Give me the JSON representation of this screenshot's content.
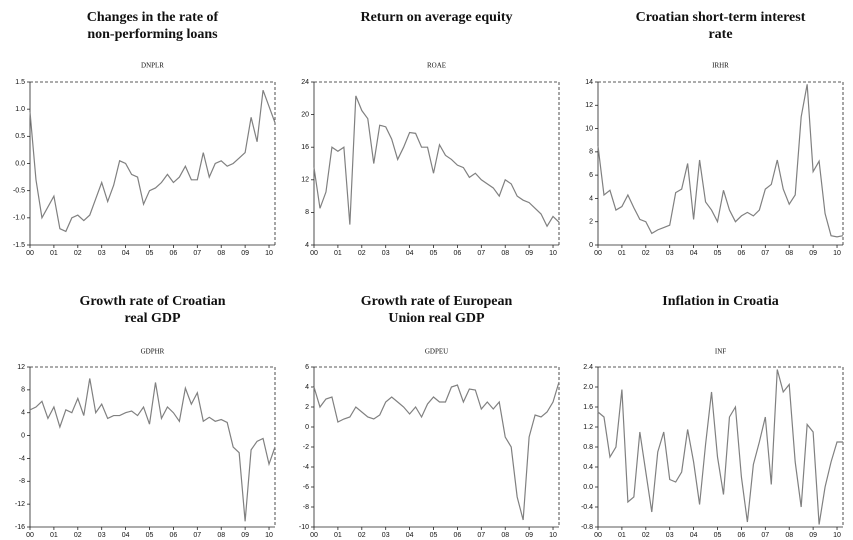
{
  "chart_data": [
    {
      "type": "line",
      "title": [
        "Changes in the rate of",
        "non-performing loans"
      ],
      "subtitle": "DNPLR",
      "color": "#808080",
      "categories": [
        "00",
        null,
        null,
        null,
        "01",
        null,
        null,
        null,
        "02",
        null,
        null,
        null,
        "03",
        null,
        null,
        null,
        "04",
        null,
        null,
        null,
        "05",
        null,
        null,
        null,
        "06",
        null,
        null,
        null,
        "07",
        null,
        null,
        null,
        "08",
        null,
        null,
        null,
        "09",
        null,
        null,
        null,
        "10",
        null
      ],
      "values": [
        0.95,
        -0.3,
        -1.0,
        -0.8,
        -0.6,
        -1.2,
        -1.25,
        -1.0,
        -0.95,
        -1.05,
        -0.95,
        -0.65,
        -0.35,
        -0.7,
        -0.4,
        0.05,
        0.0,
        -0.2,
        -0.25,
        -0.75,
        -0.5,
        -0.45,
        -0.35,
        -0.2,
        -0.35,
        -0.25,
        -0.05,
        -0.3,
        -0.3,
        0.2,
        -0.25,
        0.0,
        0.05,
        -0.05,
        0.0,
        0.1,
        0.2,
        0.85,
        0.4,
        1.35,
        1.05,
        0.75
      ],
      "ylim": [
        -1.5,
        1.5
      ],
      "yticks": [
        1.5,
        {
          "value": 1.0,
          "label": "1.0"
        },
        0.5,
        {
          "value": 0.0,
          "label": "0.0"
        },
        -0.5,
        {
          "value": -1.0,
          "label": "-1.0"
        },
        -1.5
      ]
    },
    {
      "type": "line",
      "title": [
        "Return on average equity"
      ],
      "subtitle": "ROAE",
      "color": "#808080",
      "categories": [
        "00",
        null,
        null,
        null,
        "01",
        null,
        null,
        null,
        "02",
        null,
        null,
        null,
        "03",
        null,
        null,
        null,
        "04",
        null,
        null,
        null,
        "05",
        null,
        null,
        null,
        "06",
        null,
        null,
        null,
        "07",
        null,
        null,
        null,
        "08",
        null,
        null,
        null,
        "09",
        null,
        null,
        null,
        "10",
        null
      ],
      "values": [
        13.5,
        8.5,
        10.5,
        16,
        15.5,
        16,
        6.5,
        22.3,
        20.5,
        19.5,
        14,
        18.7,
        18.5,
        17,
        14.5,
        16,
        17.8,
        17.7,
        16,
        16,
        12.8,
        16.3,
        15,
        14.5,
        13.8,
        13.5,
        12.3,
        12.8,
        12,
        11.5,
        11,
        10,
        12,
        11.5,
        10,
        9.5,
        9.2,
        8.5,
        7.8,
        6.3,
        7.5,
        6.8
      ],
      "ylim": [
        4,
        24
      ],
      "yticks": [
        24,
        20,
        16,
        12,
        8,
        4
      ]
    },
    {
      "type": "line",
      "title": [
        "Croatian short-term interest",
        "rate"
      ],
      "subtitle": "IRHR",
      "color": "#808080",
      "categories": [
        "00",
        null,
        null,
        null,
        "01",
        null,
        null,
        null,
        "02",
        null,
        null,
        null,
        "03",
        null,
        null,
        null,
        "04",
        null,
        null,
        null,
        "05",
        null,
        null,
        null,
        "06",
        null,
        null,
        null,
        "07",
        null,
        null,
        null,
        "08",
        null,
        null,
        null,
        "09",
        null,
        null,
        null,
        "10",
        null
      ],
      "values": [
        8.5,
        4.3,
        4.7,
        3,
        3.3,
        4.3,
        3.2,
        2.2,
        2,
        1,
        1.3,
        1.5,
        1.7,
        4.5,
        4.8,
        7,
        2.2,
        7.3,
        3.7,
        3,
        2,
        4.7,
        3,
        2,
        2.5,
        2.8,
        2.5,
        3,
        4.8,
        5.2,
        7.3,
        4.8,
        3.5,
        4.3,
        11,
        13.8,
        6.3,
        7.2,
        2.7,
        0.8,
        0.7,
        0.8
      ],
      "ylim": [
        0,
        14
      ],
      "yticks": [
        14,
        12,
        10,
        8,
        6,
        4,
        2,
        0
      ]
    },
    {
      "type": "line",
      "title": [
        "Growth rate of Croatian",
        "real GDP"
      ],
      "subtitle": "GDPHR",
      "color": "#808080",
      "categories": [
        "00",
        null,
        null,
        null,
        "01",
        null,
        null,
        null,
        "02",
        null,
        null,
        null,
        "03",
        null,
        null,
        null,
        "04",
        null,
        null,
        null,
        "05",
        null,
        null,
        null,
        "06",
        null,
        null,
        null,
        "07",
        null,
        null,
        null,
        "08",
        null,
        null,
        null,
        "09",
        null,
        null,
        null,
        "10",
        null
      ],
      "values": [
        4.5,
        5,
        6,
        3,
        5,
        1.5,
        4.5,
        4,
        6.5,
        3.5,
        10,
        4,
        5.5,
        3,
        3.5,
        3.5,
        4,
        4.3,
        3.5,
        5,
        2,
        9.3,
        3,
        5,
        4,
        2.5,
        8.3,
        5.5,
        7.5,
        2.5,
        3.2,
        2.5,
        2.8,
        2.3,
        -2,
        -3,
        -15,
        -2.5,
        -1,
        -0.5,
        -5,
        -2
      ],
      "ylim": [
        -16,
        12
      ],
      "yticks": [
        12,
        8,
        4,
        0,
        -4,
        -8,
        -12,
        -16
      ]
    },
    {
      "type": "line",
      "title": [
        "Growth rate of European",
        "Union real GDP"
      ],
      "subtitle": "GDPEU",
      "color": "#808080",
      "categories": [
        "00",
        null,
        null,
        null,
        "01",
        null,
        null,
        null,
        "02",
        null,
        null,
        null,
        "03",
        null,
        null,
        null,
        "04",
        null,
        null,
        null,
        "05",
        null,
        null,
        null,
        "06",
        null,
        null,
        null,
        "07",
        null,
        null,
        null,
        "08",
        null,
        null,
        null,
        "09",
        null,
        null,
        null,
        "10",
        null
      ],
      "values": [
        4,
        2,
        2.8,
        3,
        0.5,
        0.8,
        1,
        2,
        1.5,
        1,
        0.8,
        1.2,
        2.5,
        3,
        2.5,
        2,
        1.3,
        2,
        1,
        2.3,
        3,
        2.5,
        2.5,
        4,
        4.2,
        2.5,
        3.8,
        3.7,
        1.8,
        2.5,
        1.8,
        2.5,
        -1,
        -2,
        -7,
        -9.3,
        -1,
        1.2,
        1,
        1.5,
        2.5,
        4.5
      ],
      "ylim": [
        -10,
        6
      ],
      "yticks": [
        6,
        4,
        2,
        0,
        -2,
        -4,
        -6,
        -8,
        -10
      ]
    },
    {
      "type": "line",
      "title": [
        "Inflation in Croatia"
      ],
      "subtitle": "INF",
      "color": "#808080",
      "categories": [
        "00",
        null,
        null,
        null,
        "01",
        null,
        null,
        null,
        "02",
        null,
        null,
        null,
        "03",
        null,
        null,
        null,
        "04",
        null,
        null,
        null,
        "05",
        null,
        null,
        null,
        "06",
        null,
        null,
        null,
        "07",
        null,
        null,
        null,
        "08",
        null,
        null,
        null,
        "09",
        null,
        null,
        null,
        "10",
        null
      ],
      "values": [
        1.5,
        1.4,
        0.6,
        0.8,
        1.95,
        -0.3,
        -0.2,
        1.1,
        0.3,
        -0.5,
        0.7,
        1.1,
        0.15,
        0.1,
        0.3,
        1.15,
        0.5,
        -0.35,
        0.85,
        1.9,
        0.6,
        -0.15,
        1.4,
        1.6,
        0.2,
        -0.7,
        0.45,
        0.9,
        1.4,
        0.05,
        2.35,
        1.9,
        2.05,
        0.5,
        -0.4,
        1.25,
        1.1,
        -0.75,
        0.0,
        0.5,
        0.9,
        0.9
      ],
      "ylim": [
        -0.8,
        2.4
      ],
      "yticks": [
        2.4,
        {
          "value": 2.0,
          "label": "2.0"
        },
        1.6,
        1.2,
        0.8,
        0.4,
        {
          "value": 0.0,
          "label": "0.0"
        },
        -0.4,
        -0.8
      ]
    }
  ]
}
